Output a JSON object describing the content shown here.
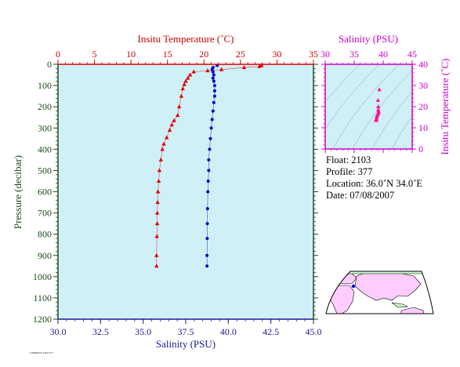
{
  "chart_data": [
    {
      "type": "scatter",
      "xlabel_top": "Insitu Temperature (˚C)",
      "xlabel_bottom": "Salinity (PSU)",
      "ylabel": "Pressure (decibar)",
      "temperature_axis": {
        "min": 0,
        "max": 35,
        "ticks": [
          "0",
          "5",
          "10",
          "15",
          "20",
          "25",
          "30",
          "35"
        ]
      },
      "salinity_axis": {
        "min": 30,
        "max": 45,
        "ticks": [
          "30.0",
          "32.5",
          "35.0",
          "37.5",
          "40.0",
          "42.5",
          "45.0"
        ]
      },
      "pressure_axis": {
        "min": 0,
        "max": 1200,
        "ticks": [
          "0",
          "100",
          "200",
          "300",
          "400",
          "500",
          "600",
          "700",
          "800",
          "900",
          "1000",
          "1100",
          "1200"
        ]
      },
      "series": [
        {
          "variable": "temperature",
          "color": "#e00000",
          "marker": "triangle",
          "points": [
            [
              27.9,
              5
            ],
            [
              27.6,
              10
            ],
            [
              25.5,
              15
            ],
            [
              22.4,
              25
            ],
            [
              20.5,
              30
            ],
            [
              18.6,
              35
            ],
            [
              18.1,
              50
            ],
            [
              17.8,
              65
            ],
            [
              17.5,
              80
            ],
            [
              17.3,
              95
            ],
            [
              17.1,
              115
            ],
            [
              16.9,
              150
            ],
            [
              16.6,
              200
            ],
            [
              16.4,
              240
            ],
            [
              15.9,
              265
            ],
            [
              15.6,
              285
            ],
            [
              15.3,
              310
            ],
            [
              14.9,
              345
            ],
            [
              14.5,
              375
            ],
            [
              14.3,
              400
            ],
            [
              14.1,
              450
            ],
            [
              13.9,
              500
            ],
            [
              13.8,
              550
            ],
            [
              13.7,
              600
            ],
            [
              13.65,
              650
            ],
            [
              13.6,
              700
            ],
            [
              13.6,
              750
            ],
            [
              13.55,
              810
            ],
            [
              13.5,
              900
            ],
            [
              13.5,
              950
            ]
          ]
        },
        {
          "variable": "salinity",
          "color": "#0000cc",
          "marker": "dot",
          "points": [
            [
              39.35,
              5
            ],
            [
              39.1,
              15
            ],
            [
              39.05,
              25
            ],
            [
              39.1,
              35
            ],
            [
              39.15,
              50
            ],
            [
              39.1,
              65
            ],
            [
              39.15,
              80
            ],
            [
              39.2,
              100
            ],
            [
              39.2,
              125
            ],
            [
              39.2,
              150
            ],
            [
              39.15,
              180
            ],
            [
              39.1,
              220
            ],
            [
              39.05,
              260
            ],
            [
              39.0,
              300
            ],
            [
              38.95,
              350
            ],
            [
              38.9,
              400
            ],
            [
              38.85,
              450
            ],
            [
              38.85,
              500
            ],
            [
              38.82,
              550
            ],
            [
              38.8,
              600
            ],
            [
              38.78,
              680
            ],
            [
              38.77,
              750
            ],
            [
              38.76,
              820
            ],
            [
              38.75,
              900
            ],
            [
              38.75,
              950
            ]
          ]
        }
      ]
    },
    {
      "type": "scatter",
      "xlabel": "Salinity (PSU)",
      "ylabel": "Insitu Temperature (˚C)",
      "salinity_axis": {
        "min": 30,
        "max": 45,
        "ticks": [
          "30",
          "35",
          "40",
          "45"
        ]
      },
      "temperature_axis": {
        "min": 0,
        "max": 40,
        "ticks": [
          "0",
          "10",
          "20",
          "30",
          "40"
        ]
      },
      "series": [
        {
          "color": "#ff1493",
          "marker": "triangle",
          "points": [
            [
              39.35,
              28
            ],
            [
              39.1,
              23
            ],
            [
              39.15,
              20
            ],
            [
              39.15,
              18.5
            ],
            [
              39.2,
              17.8
            ],
            [
              39.2,
              17.3
            ],
            [
              39.15,
              16.9
            ],
            [
              39.05,
              16.4
            ],
            [
              38.95,
              15.9
            ],
            [
              38.9,
              15.3
            ],
            [
              38.85,
              14.5
            ],
            [
              38.82,
              14.1
            ],
            [
              38.8,
              13.8
            ],
            [
              38.77,
              13.6
            ],
            [
              38.75,
              13.5
            ]
          ]
        }
      ]
    }
  ],
  "info": {
    "float": "Float:  2103",
    "profile": "Profile:  377",
    "location": "Location:  36.0˚N  34.0˚E",
    "date": "Date:  07/08/2007"
  },
  "map_colors": {
    "ocean": "#ffffff",
    "land": "#ffccff",
    "land_alt": "#ccffcc"
  },
  "footer_code": "1 PROFILE 2103 377"
}
